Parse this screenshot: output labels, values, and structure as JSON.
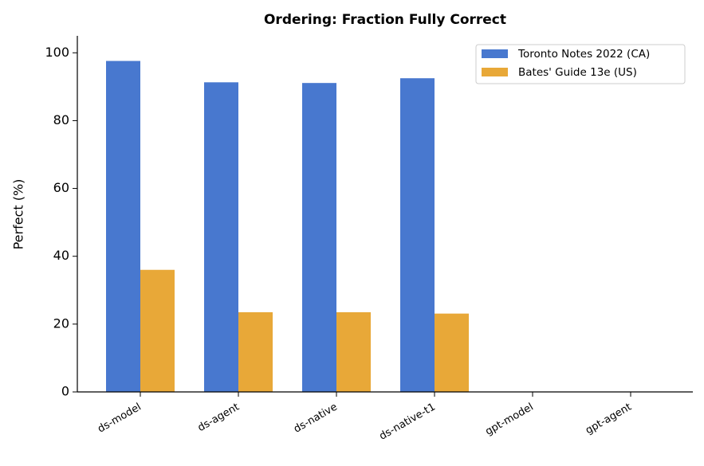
{
  "chart_data": {
    "type": "bar",
    "title": "Ordering: Fraction Fully Correct",
    "ylabel": "Perfect (%)",
    "categories": [
      "ds-model",
      "ds-agent",
      "ds-native",
      "ds-native-t1",
      "gpt-model",
      "gpt-agent"
    ],
    "series": [
      {
        "name": "Toronto Notes 2022 (CA)",
        "color": "#4878cf",
        "values": [
          97.6,
          91.3,
          91.1,
          92.5,
          0,
          0
        ]
      },
      {
        "name": "Bates' Guide 13e (US)",
        "color": "#e8a838",
        "values": [
          36.0,
          23.5,
          23.5,
          23.1,
          0,
          0
        ]
      }
    ],
    "ylim": [
      0,
      105
    ],
    "yticks": [
      0,
      20,
      40,
      60,
      80,
      100
    ],
    "grid": false,
    "legend": "upper right"
  }
}
